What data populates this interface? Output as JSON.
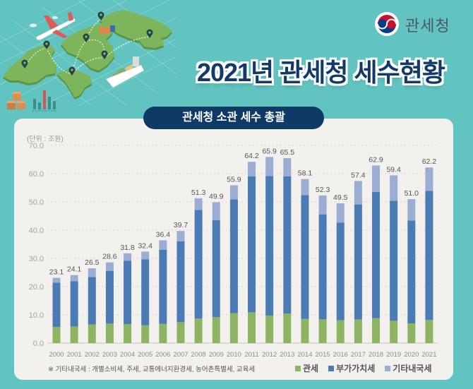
{
  "theme": {
    "background": "#62c4c1",
    "navy": "#0f3a66",
    "card": "#f3f1ed"
  },
  "logo": {
    "icon": "taegeuk-emblem-icon",
    "text": "관세청"
  },
  "header": {
    "title": "2021년 관세청 세수현황"
  },
  "chart_data": {
    "type": "bar",
    "stacked": true,
    "title": "관세청 소관 세수 총괄",
    "unit_label": "(단위 : 조원)",
    "xlabel": "",
    "ylabel": "",
    "ylim": [
      0,
      70
    ],
    "grid": true,
    "legend_position": "bottom-right",
    "y_ticks": [
      0,
      10,
      20,
      30,
      40,
      50,
      60,
      70
    ],
    "y_tick_labels": [
      "0.0",
      "10.0",
      "20.0",
      "30.0",
      "40.0",
      "50.0",
      "60.0",
      "70.0"
    ],
    "categories": [
      "2000",
      "2001",
      "2002",
      "2003",
      "2004",
      "2005",
      "2006",
      "2007",
      "2008",
      "2009",
      "2010",
      "2011",
      "2012",
      "2013",
      "2014",
      "2015",
      "2016",
      "2017",
      "2018",
      "2019",
      "2020",
      "2021"
    ],
    "series": [
      {
        "name": "관세",
        "color": "#8db463",
        "values": [
          5.7,
          5.9,
          6.6,
          6.9,
          6.7,
          6.3,
          6.8,
          7.4,
          8.7,
          9.2,
          10.6,
          10.9,
          9.7,
          10.5,
          8.6,
          8.4,
          8.1,
          8.4,
          8.8,
          7.9,
          7.0,
          8.2
        ]
      },
      {
        "name": "부가가치세",
        "color": "#4a7bb5",
        "values": [
          15.7,
          16.0,
          16.8,
          18.7,
          22.5,
          23.4,
          26.2,
          28.6,
          38.5,
          34.3,
          40.3,
          48.1,
          49.5,
          48.5,
          43.8,
          37.2,
          34.6,
          40.7,
          44.7,
          42.5,
          36.4,
          45.7
        ]
      },
      {
        "name": "기타내국세",
        "color": "#9aaed3",
        "values": [
          1.7,
          2.2,
          3.1,
          3.0,
          2.6,
          2.7,
          3.4,
          3.7,
          4.1,
          6.4,
          5.0,
          5.2,
          6.7,
          6.5,
          5.7,
          6.7,
          6.8,
          8.3,
          9.4,
          9.0,
          7.6,
          8.3
        ]
      }
    ],
    "totals": [
      23.1,
      24.1,
      26.5,
      28.6,
      31.8,
      32.4,
      36.4,
      39.7,
      51.3,
      49.9,
      55.9,
      64.2,
      65.9,
      65.5,
      58.1,
      52.3,
      49.5,
      57.4,
      62.9,
      59.4,
      51.0,
      62.2
    ],
    "total_labels": [
      "23.1",
      "24.1",
      "26.5",
      "28.6",
      "31.8",
      "32.4",
      "36.4",
      "39.7",
      "51.3",
      "49.9",
      "55.9",
      "64.2",
      "65.9",
      "65.5",
      "58.1",
      "52.3",
      "49.5",
      "57.4",
      "62.9",
      "59.4",
      "51.0",
      "62.2"
    ],
    "footnote": "※ 기타내국세 : 개별소비세, 주세, 교통에너지환경세, 농어촌특별세, 교육세"
  }
}
